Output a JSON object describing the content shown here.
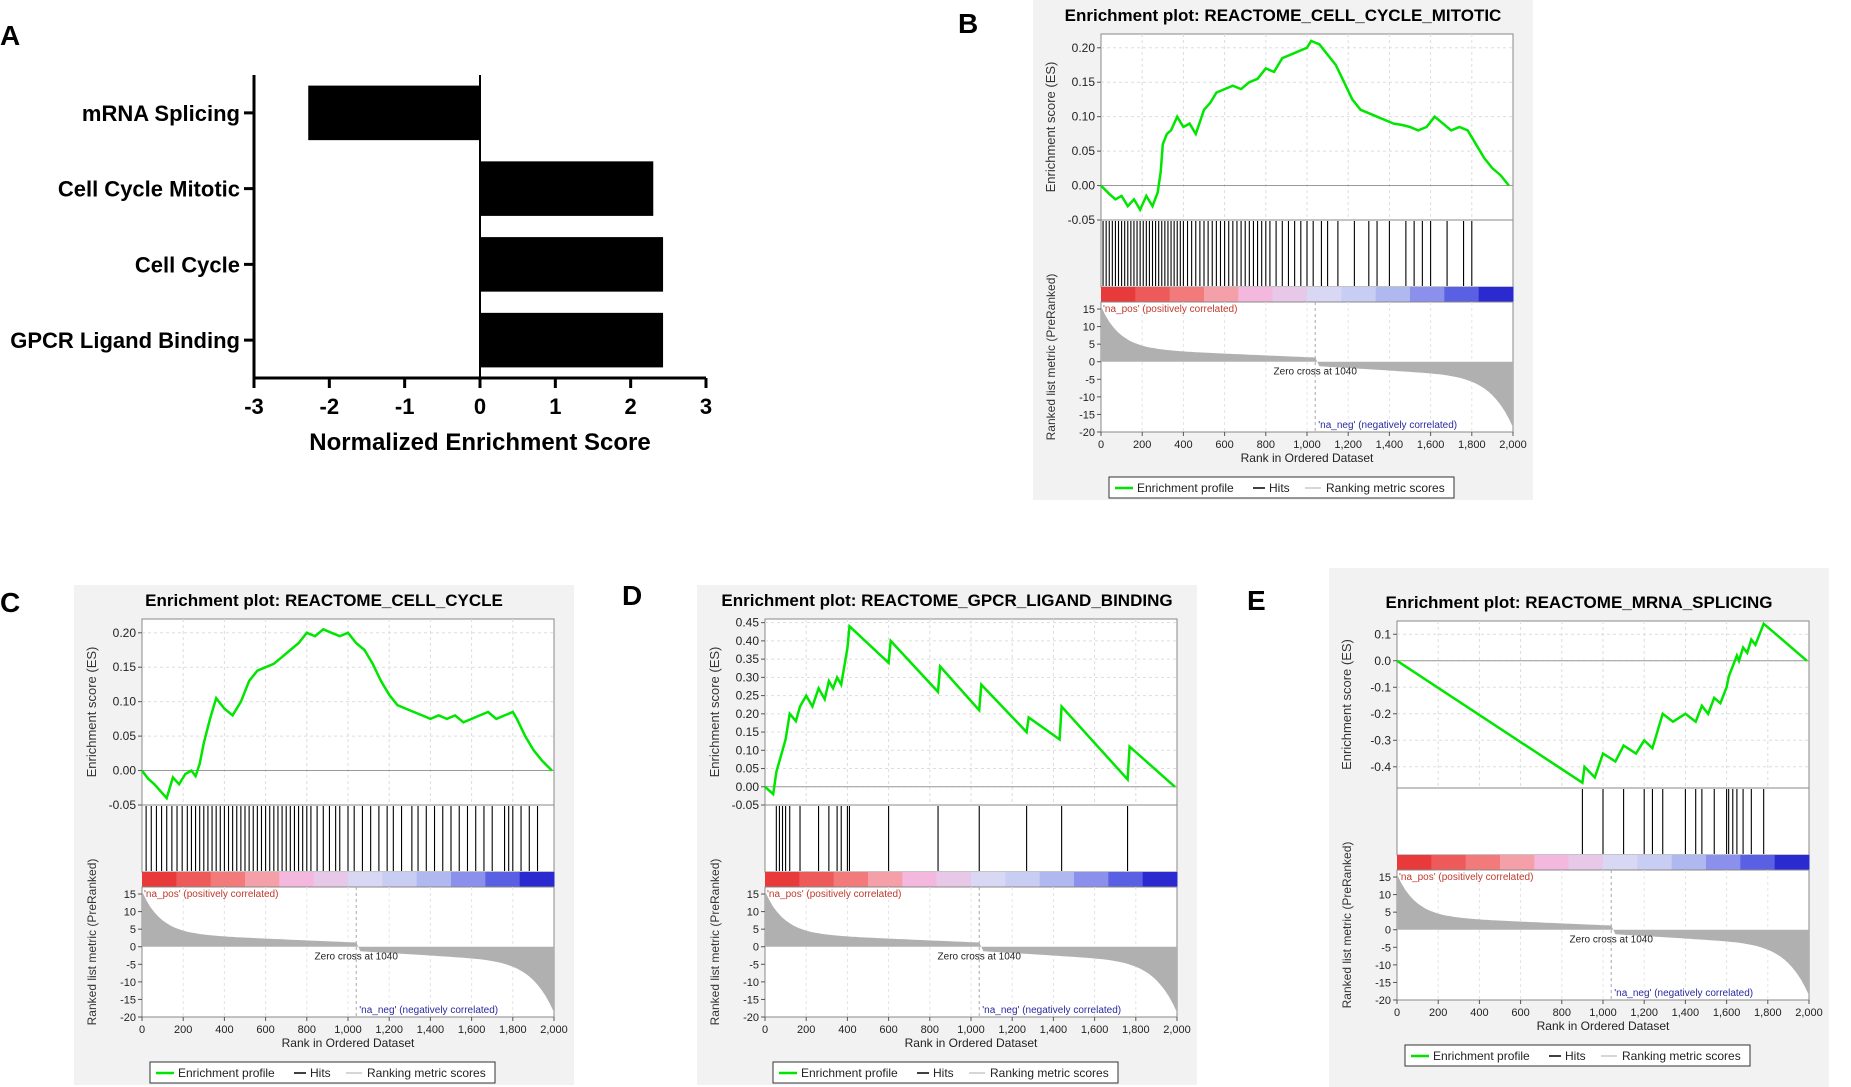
{
  "panel_labels": {
    "a": "A",
    "b": "B",
    "c": "C",
    "d": "D",
    "e": "E"
  },
  "colors": {
    "es_line": "#00e600",
    "bar": "#000000",
    "pos_label": "#c0392b",
    "neg_label": "#2a2aa0",
    "metric_fill": "#b0b0b0",
    "panel_bg": "#f2f2f2"
  },
  "chart_data": [
    {
      "id": "A",
      "type": "bar",
      "orientation": "horizontal",
      "categories": [
        "mRNA Splicing",
        "Cell Cycle Mitotic",
        "Cell Cycle",
        "GPCR Ligand Binding"
      ],
      "values": [
        -2.28,
        2.3,
        2.43,
        2.43
      ],
      "xlabel": "Normalized Enrichment Score",
      "xlim": [
        -3,
        3
      ],
      "xticks": [
        "-3",
        "-2",
        "-1",
        "0",
        "1",
        "2",
        "3"
      ],
      "xtick_values": [
        -3,
        -2,
        -1,
        0,
        1,
        2,
        3
      ]
    },
    {
      "id": "B",
      "type": "line",
      "title": "Enrichment plot: REACTOME_CELL_CYCLE_MITOTIC",
      "ylabel_es": "Enrichment score (ES)",
      "ylabel_metric": "Ranked list metric (PreRanked)",
      "xlabel": "Rank in Ordered Dataset",
      "xlim": [
        0,
        2000
      ],
      "xticks": [
        "0",
        "200",
        "400",
        "600",
        "800",
        "1,000",
        "1,200",
        "1,400",
        "1,600",
        "1,800",
        "2,000"
      ],
      "es_ylim": [
        -0.05,
        0.22
      ],
      "es_yticks": [
        "0.20",
        "0.15",
        "0.10",
        "0.05",
        "0.00",
        "-0.05"
      ],
      "es_ytick_values": [
        0.2,
        0.15,
        0.1,
        0.05,
        0.0,
        -0.05
      ],
      "metric_yticks": [
        "15",
        "10",
        "5",
        "0",
        "-5",
        "-10",
        "-15",
        "-20"
      ],
      "zero_cross_label": "Zero cross at 1040",
      "pos_label": "'na_pos' (positively correlated)",
      "neg_label": "'na_neg' (negatively correlated)",
      "legend": [
        "Enrichment profile",
        "Hits",
        "Ranking metric scores"
      ],
      "es_points": [
        [
          0,
          0.0
        ],
        [
          40,
          -0.012
        ],
        [
          70,
          -0.02
        ],
        [
          100,
          -0.015
        ],
        [
          130,
          -0.03
        ],
        [
          160,
          -0.02
        ],
        [
          190,
          -0.035
        ],
        [
          220,
          -0.015
        ],
        [
          250,
          -0.03
        ],
        [
          275,
          -0.01
        ],
        [
          290,
          0.02
        ],
        [
          300,
          0.06
        ],
        [
          320,
          0.075
        ],
        [
          340,
          0.08
        ],
        [
          370,
          0.1
        ],
        [
          400,
          0.085
        ],
        [
          430,
          0.09
        ],
        [
          460,
          0.075
        ],
        [
          500,
          0.11
        ],
        [
          530,
          0.12
        ],
        [
          560,
          0.135
        ],
        [
          600,
          0.14
        ],
        [
          640,
          0.145
        ],
        [
          680,
          0.14
        ],
        [
          720,
          0.15
        ],
        [
          760,
          0.155
        ],
        [
          800,
          0.17
        ],
        [
          840,
          0.165
        ],
        [
          880,
          0.185
        ],
        [
          920,
          0.19
        ],
        [
          960,
          0.195
        ],
        [
          1000,
          0.2
        ],
        [
          1020,
          0.21
        ],
        [
          1060,
          0.205
        ],
        [
          1100,
          0.19
        ],
        [
          1140,
          0.175
        ],
        [
          1180,
          0.15
        ],
        [
          1220,
          0.125
        ],
        [
          1260,
          0.11
        ],
        [
          1300,
          0.105
        ],
        [
          1340,
          0.1
        ],
        [
          1380,
          0.095
        ],
        [
          1420,
          0.09
        ],
        [
          1460,
          0.088
        ],
        [
          1500,
          0.085
        ],
        [
          1540,
          0.08
        ],
        [
          1580,
          0.085
        ],
        [
          1620,
          0.1
        ],
        [
          1660,
          0.09
        ],
        [
          1700,
          0.08
        ],
        [
          1740,
          0.085
        ],
        [
          1780,
          0.08
        ],
        [
          1820,
          0.06
        ],
        [
          1860,
          0.04
        ],
        [
          1900,
          0.025
        ],
        [
          1940,
          0.015
        ],
        [
          1980,
          0.0
        ]
      ],
      "hits": [
        10,
        25,
        40,
        55,
        70,
        85,
        100,
        115,
        130,
        145,
        160,
        175,
        190,
        205,
        220,
        235,
        250,
        265,
        280,
        295,
        310,
        325,
        340,
        355,
        370,
        385,
        400,
        420,
        440,
        460,
        480,
        500,
        520,
        540,
        560,
        580,
        600,
        620,
        640,
        660,
        680,
        700,
        720,
        740,
        760,
        780,
        800,
        820,
        850,
        880,
        910,
        940,
        970,
        1000,
        1030,
        1070,
        1100,
        1150,
        1230,
        1300,
        1340,
        1400,
        1480,
        1520,
        1560,
        1600,
        1680,
        1760,
        1800
      ],
      "band_colors": [
        "#e83a3a",
        "#ee5a5a",
        "#f27a7a",
        "#f5a0a8",
        "#f4b8de",
        "#e8c8e8",
        "#d8d8f4",
        "#c8cdf4",
        "#b0b8f0",
        "#8a90ec",
        "#5a60e4",
        "#2a2ad0"
      ]
    },
    {
      "id": "C",
      "type": "line",
      "title": "Enrichment plot: REACTOME_CELL_CYCLE",
      "ylabel_es": "Enrichment score (ES)",
      "ylabel_metric": "Ranked list metric (PreRanked)",
      "xlabel": "Rank in Ordered Dataset",
      "xlim": [
        0,
        2000
      ],
      "xticks": [
        "0",
        "200",
        "400",
        "600",
        "800",
        "1,000",
        "1,200",
        "1,400",
        "1,600",
        "1,800",
        "2,000"
      ],
      "es_ylim": [
        -0.05,
        0.22
      ],
      "es_yticks": [
        "0.20",
        "0.15",
        "0.10",
        "0.05",
        "0.00",
        "-0.05"
      ],
      "es_ytick_values": [
        0.2,
        0.15,
        0.1,
        0.05,
        0.0,
        -0.05
      ],
      "metric_yticks": [
        "15",
        "10",
        "5",
        "0",
        "-5",
        "-10",
        "-15",
        "-20"
      ],
      "zero_cross_label": "Zero cross at 1040",
      "pos_label": "'na_pos' (positively correlated)",
      "neg_label": "'na_neg' (negatively correlated)",
      "legend": [
        "Enrichment profile",
        "Hits",
        "Ranking metric scores"
      ],
      "es_points": [
        [
          0,
          0.0
        ],
        [
          30,
          -0.012
        ],
        [
          60,
          -0.02
        ],
        [
          90,
          -0.03
        ],
        [
          120,
          -0.04
        ],
        [
          150,
          -0.01
        ],
        [
          180,
          -0.02
        ],
        [
          210,
          -0.005
        ],
        [
          240,
          0.0
        ],
        [
          260,
          -0.008
        ],
        [
          280,
          0.01
        ],
        [
          300,
          0.04
        ],
        [
          330,
          0.075
        ],
        [
          360,
          0.105
        ],
        [
          400,
          0.09
        ],
        [
          440,
          0.08
        ],
        [
          480,
          0.1
        ],
        [
          520,
          0.13
        ],
        [
          560,
          0.145
        ],
        [
          600,
          0.15
        ],
        [
          640,
          0.155
        ],
        [
          680,
          0.165
        ],
        [
          720,
          0.175
        ],
        [
          760,
          0.185
        ],
        [
          800,
          0.2
        ],
        [
          840,
          0.195
        ],
        [
          880,
          0.205
        ],
        [
          920,
          0.2
        ],
        [
          960,
          0.195
        ],
        [
          1000,
          0.2
        ],
        [
          1040,
          0.185
        ],
        [
          1080,
          0.175
        ],
        [
          1120,
          0.155
        ],
        [
          1160,
          0.13
        ],
        [
          1200,
          0.11
        ],
        [
          1240,
          0.095
        ],
        [
          1280,
          0.09
        ],
        [
          1320,
          0.085
        ],
        [
          1360,
          0.08
        ],
        [
          1400,
          0.075
        ],
        [
          1440,
          0.08
        ],
        [
          1480,
          0.075
        ],
        [
          1520,
          0.08
        ],
        [
          1560,
          0.07
        ],
        [
          1600,
          0.075
        ],
        [
          1640,
          0.08
        ],
        [
          1680,
          0.085
        ],
        [
          1720,
          0.075
        ],
        [
          1760,
          0.08
        ],
        [
          1800,
          0.085
        ],
        [
          1820,
          0.075
        ],
        [
          1860,
          0.05
        ],
        [
          1900,
          0.03
        ],
        [
          1940,
          0.015
        ],
        [
          1990,
          0.0
        ]
      ],
      "hits": [
        20,
        45,
        70,
        95,
        120,
        145,
        170,
        195,
        220,
        240,
        260,
        280,
        300,
        320,
        340,
        360,
        380,
        400,
        420,
        440,
        460,
        480,
        500,
        520,
        540,
        560,
        580,
        600,
        620,
        640,
        660,
        680,
        700,
        720,
        740,
        760,
        780,
        800,
        820,
        850,
        880,
        910,
        940,
        960,
        1000,
        1030,
        1070,
        1110,
        1150,
        1190,
        1220,
        1260,
        1310,
        1340,
        1380,
        1420,
        1460,
        1500,
        1540,
        1580,
        1620,
        1660,
        1700,
        1760,
        1780,
        1800,
        1840,
        1880,
        1920
      ],
      "band_colors": [
        "#e83a3a",
        "#ee5a5a",
        "#f27a7a",
        "#f5a0a8",
        "#f4b8de",
        "#e8c8e8",
        "#d8d8f4",
        "#c8cdf4",
        "#b0b8f0",
        "#8a90ec",
        "#5a60e4",
        "#2a2ad0"
      ]
    },
    {
      "id": "D",
      "type": "line",
      "title": "Enrichment plot: REACTOME_GPCR_LIGAND_BINDING",
      "ylabel_es": "Enrichment score (ES)",
      "ylabel_metric": "Ranked list metric (PreRanked)",
      "xlabel": "Rank in Ordered Dataset",
      "xlim": [
        0,
        2000
      ],
      "xticks": [
        "0",
        "200",
        "400",
        "600",
        "800",
        "1,000",
        "1,200",
        "1,400",
        "1,600",
        "1,800",
        "2,000"
      ],
      "es_ylim": [
        -0.05,
        0.46
      ],
      "es_yticks": [
        "0.45",
        "0.40",
        "0.35",
        "0.30",
        "0.25",
        "0.20",
        "0.15",
        "0.10",
        "0.05",
        "0.00",
        "-0.05"
      ],
      "es_ytick_values": [
        0.45,
        0.4,
        0.35,
        0.3,
        0.25,
        0.2,
        0.15,
        0.1,
        0.05,
        0.0,
        -0.05
      ],
      "metric_yticks": [
        "15",
        "10",
        "5",
        "0",
        "-5",
        "-10",
        "-15",
        "-20"
      ],
      "zero_cross_label": "Zero cross at 1040",
      "pos_label": "'na_pos' (positively correlated)",
      "neg_label": "'na_neg' (negatively correlated)",
      "legend": [
        "Enrichment profile",
        "Hits",
        "Ranking metric scores"
      ],
      "es_points": [
        [
          0,
          0.0
        ],
        [
          40,
          -0.02
        ],
        [
          55,
          0.04
        ],
        [
          70,
          0.07
        ],
        [
          85,
          0.1
        ],
        [
          100,
          0.13
        ],
        [
          120,
          0.2
        ],
        [
          150,
          0.18
        ],
        [
          170,
          0.22
        ],
        [
          200,
          0.25
        ],
        [
          230,
          0.22
        ],
        [
          260,
          0.27
        ],
        [
          290,
          0.24
        ],
        [
          310,
          0.29
        ],
        [
          330,
          0.27
        ],
        [
          350,
          0.3
        ],
        [
          370,
          0.28
        ],
        [
          400,
          0.38
        ],
        [
          410,
          0.44
        ],
        [
          600,
          0.34
        ],
        [
          610,
          0.4
        ],
        [
          840,
          0.26
        ],
        [
          850,
          0.33
        ],
        [
          1040,
          0.21
        ],
        [
          1050,
          0.28
        ],
        [
          1270,
          0.15
        ],
        [
          1280,
          0.19
        ],
        [
          1430,
          0.13
        ],
        [
          1440,
          0.22
        ],
        [
          1760,
          0.02
        ],
        [
          1770,
          0.11
        ],
        [
          1990,
          0.0
        ]
      ],
      "hits": [
        55,
        70,
        85,
        100,
        120,
        170,
        260,
        310,
        350,
        370,
        400,
        410,
        600,
        840,
        1040,
        1270,
        1440,
        1760
      ],
      "band_colors": [
        "#e83a3a",
        "#ee5a5a",
        "#f27a7a",
        "#f5a0a8",
        "#f4b8de",
        "#e8c8e8",
        "#d8d8f4",
        "#c8cdf4",
        "#b0b8f0",
        "#8a90ec",
        "#5a60e4",
        "#2a2ad0"
      ]
    },
    {
      "id": "E",
      "type": "line",
      "title": "Enrichment plot: REACTOME_MRNA_SPLICING",
      "ylabel_es": "Enrichment score (ES)",
      "ylabel_metric": "Ranked list metric (PreRanked)",
      "xlabel": "Rank in Ordered Dataset",
      "xlim": [
        0,
        2000
      ],
      "xticks": [
        "0",
        "200",
        "400",
        "600",
        "800",
        "1,000",
        "1,200",
        "1,400",
        "1,600",
        "1,800",
        "2,000"
      ],
      "es_ylim": [
        -0.48,
        0.15
      ],
      "es_yticks": [
        "0.1",
        "0.0",
        "-0.1",
        "-0.2",
        "-0.3",
        "-0.4"
      ],
      "es_ytick_values": [
        0.1,
        0.0,
        -0.1,
        -0.2,
        -0.3,
        -0.4
      ],
      "metric_yticks": [
        "15",
        "10",
        "5",
        "0",
        "-5",
        "-10",
        "-15",
        "-20"
      ],
      "zero_cross_label": "Zero cross at 1040",
      "pos_label": "'na_pos' (positively correlated)",
      "neg_label": "'na_neg' (negatively correlated)",
      "legend": [
        "Enrichment profile",
        "Hits",
        "Ranking metric scores"
      ],
      "es_points": [
        [
          0,
          0.0
        ],
        [
          900,
          -0.46
        ],
        [
          910,
          -0.4
        ],
        [
          960,
          -0.44
        ],
        [
          1000,
          -0.35
        ],
        [
          1060,
          -0.38
        ],
        [
          1100,
          -0.32
        ],
        [
          1160,
          -0.35
        ],
        [
          1200,
          -0.3
        ],
        [
          1240,
          -0.33
        ],
        [
          1290,
          -0.2
        ],
        [
          1340,
          -0.23
        ],
        [
          1400,
          -0.2
        ],
        [
          1450,
          -0.23
        ],
        [
          1480,
          -0.17
        ],
        [
          1510,
          -0.2
        ],
        [
          1540,
          -0.14
        ],
        [
          1570,
          -0.16
        ],
        [
          1600,
          -0.1
        ],
        [
          1610,
          -0.06
        ],
        [
          1630,
          -0.02
        ],
        [
          1650,
          0.02
        ],
        [
          1660,
          0.0
        ],
        [
          1680,
          0.05
        ],
        [
          1700,
          0.03
        ],
        [
          1720,
          0.08
        ],
        [
          1740,
          0.06
        ],
        [
          1780,
          0.14
        ],
        [
          1990,
          0.0
        ]
      ],
      "hits": [
        900,
        1000,
        1100,
        1200,
        1240,
        1290,
        1400,
        1450,
        1480,
        1540,
        1600,
        1610,
        1630,
        1650,
        1680,
        1720,
        1780
      ],
      "band_colors": [
        "#e83a3a",
        "#ee5a5a",
        "#f27a7a",
        "#f5a0a8",
        "#f4b8de",
        "#e8c8e8",
        "#d8d8f4",
        "#c8cdf4",
        "#b0b8f0",
        "#8a90ec",
        "#5a60e4",
        "#2a2ad0"
      ]
    }
  ]
}
